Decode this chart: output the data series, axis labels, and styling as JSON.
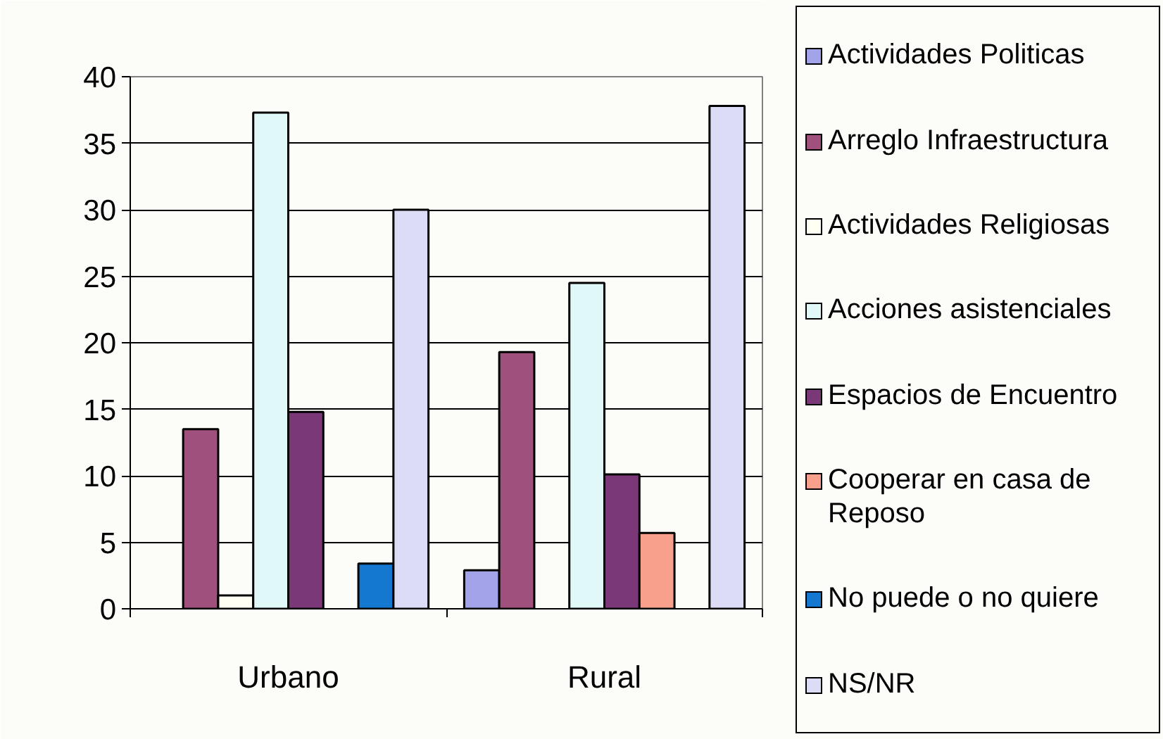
{
  "chart_data": {
    "type": "bar",
    "categories": [
      "Urbano",
      "Rural"
    ],
    "series": [
      {
        "name": "Actividades Politicas",
        "color": "#a3a3ea",
        "values": [
          null,
          2.9
        ]
      },
      {
        "name": "Arreglo Infraestructura",
        "color": "#a0507c",
        "values": [
          13.5,
          19.3
        ]
      },
      {
        "name": "Actividades Religiosas",
        "color": "#fffff4",
        "values": [
          1.0,
          null
        ]
      },
      {
        "name": "Acciones asistenciales",
        "color": "#e0f8f8",
        "values": [
          37.3,
          24.5
        ]
      },
      {
        "name": "Espacios de Encuentro",
        "color": "#7a3878",
        "values": [
          14.8,
          10.1
        ]
      },
      {
        "name": "Cooperar en casa de Reposo",
        "color": "#f8a08c",
        "values": [
          null,
          5.7
        ]
      },
      {
        "name": "No puede o no quiere",
        "color": "#1478d0",
        "values": [
          3.4,
          null
        ]
      },
      {
        "name": "NS/NR",
        "color": "#dcdcf6",
        "values": [
          30.0,
          37.8
        ]
      }
    ],
    "ylim": [
      0,
      40
    ],
    "yticks": [
      0,
      5,
      10,
      15,
      20,
      25,
      30,
      35,
      40
    ],
    "grid": "y",
    "legend": "right"
  }
}
